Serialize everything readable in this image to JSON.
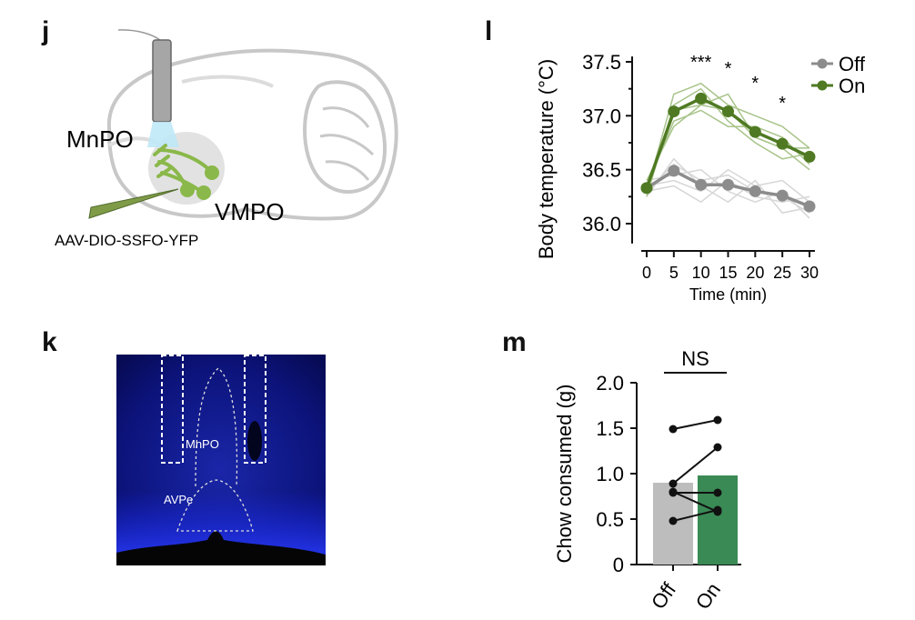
{
  "panels": {
    "j": {
      "letter": "j",
      "labels": {
        "mnpo": "MnPO",
        "vmpo": "VMPO",
        "virus": "AAV-DIO-SSFO-YFP"
      }
    },
    "k": {
      "letter": "k",
      "labels": {
        "mnpo": "MnPO",
        "avpe": "AVPe"
      }
    },
    "l": {
      "letter": "l"
    },
    "m": {
      "letter": "m"
    }
  },
  "colors": {
    "off": "#8c8c8c",
    "on": "#4f7a23",
    "off_light": "#d6d6d6",
    "on_light": "#a8c48a",
    "bar_off": "#bdbdbd",
    "bar_on": "#3a8a55",
    "brain_outline": "#c8c8c8",
    "fiber": "#a6a6a6",
    "light_cone": "#bfe8f7",
    "neuron": "#8ab84a",
    "section_bg": "#0a1060"
  },
  "chart_data": [
    {
      "panel": "l",
      "type": "line",
      "xlabel": "Time (min)",
      "ylabel": "Body temperature (°C)",
      "x": [
        0,
        5,
        10,
        15,
        20,
        25,
        30
      ],
      "xticks": [
        "0",
        "5",
        "10",
        "15",
        "20",
        "25",
        "30"
      ],
      "yticks": [
        "36.0",
        "36.5",
        "37.0",
        "37.5"
      ],
      "xlim": [
        -1,
        31
      ],
      "ylim": [
        35.9,
        37.55
      ],
      "series": [
        {
          "name": "Off",
          "values": [
            36.33,
            36.49,
            36.36,
            36.36,
            36.3,
            36.26,
            36.16
          ]
        },
        {
          "name": "On",
          "values": [
            36.33,
            37.04,
            37.16,
            37.04,
            36.85,
            36.74,
            36.62
          ]
        }
      ],
      "individual": {
        "Off": [
          [
            36.3,
            36.55,
            36.4,
            36.45,
            36.3,
            36.25,
            36.1
          ],
          [
            36.35,
            36.4,
            36.3,
            36.5,
            36.35,
            36.4,
            36.2
          ],
          [
            36.25,
            36.6,
            36.35,
            36.2,
            36.4,
            36.1,
            36.15
          ],
          [
            36.4,
            36.45,
            36.5,
            36.3,
            36.2,
            36.3,
            36.05
          ],
          [
            36.3,
            36.35,
            36.2,
            36.4,
            36.25,
            36.2,
            36.25
          ]
        ],
        "On": [
          [
            36.3,
            37.2,
            37.3,
            37.1,
            37.0,
            36.9,
            36.7
          ],
          [
            36.4,
            36.9,
            37.1,
            37.2,
            36.8,
            36.7,
            36.5
          ],
          [
            36.25,
            37.1,
            37.25,
            36.95,
            36.75,
            36.6,
            36.65
          ],
          [
            36.35,
            36.95,
            37.05,
            36.9,
            36.9,
            36.8,
            36.55
          ],
          [
            36.3,
            37.05,
            37.1,
            37.05,
            36.8,
            36.7,
            36.7
          ]
        ]
      },
      "annotations": [
        {
          "x": 10,
          "text": "***"
        },
        {
          "x": 15,
          "text": "*"
        },
        {
          "x": 20,
          "text": "*"
        },
        {
          "x": 25,
          "text": "*"
        }
      ],
      "legend": {
        "placement": "top-right",
        "entries": [
          "Off",
          "On"
        ]
      }
    },
    {
      "panel": "m",
      "type": "bar",
      "categories": [
        "Off",
        "On"
      ],
      "values": [
        0.9,
        0.98
      ],
      "ylabel": "Chow consumed (g)",
      "yticks": [
        "0",
        "0.5",
        "1.0",
        "1.5",
        "2.0"
      ],
      "ylim": [
        0,
        2.0
      ],
      "paired_points": [
        [
          1.49,
          1.59
        ],
        [
          0.89,
          1.29
        ],
        [
          0.8,
          0.58
        ],
        [
          0.79,
          0.79
        ],
        [
          0.48,
          0.6
        ]
      ],
      "significance": "NS"
    }
  ]
}
